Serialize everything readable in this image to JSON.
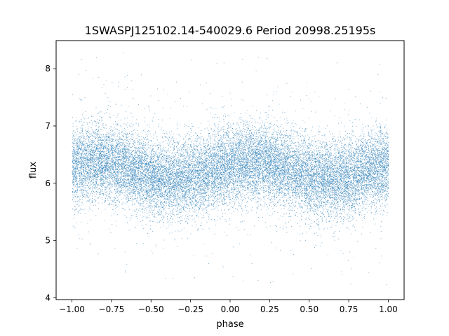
{
  "chart_data": {
    "type": "scatter",
    "title": "1SWASPJ125102.14-540029.6 Period 20998.25195s",
    "xlabel": "phase",
    "ylabel": "flux",
    "xlim": [
      -1.1,
      1.1
    ],
    "ylim": [
      3.97,
      8.49
    ],
    "x_ticks": [
      -1.0,
      -0.75,
      -0.5,
      -0.25,
      0.0,
      0.25,
      0.5,
      0.75,
      1.0
    ],
    "x_tick_labels": [
      "−1.00",
      "−0.75",
      "−0.50",
      "−0.25",
      "0.00",
      "0.25",
      "0.50",
      "0.75",
      "1.00"
    ],
    "y_ticks": [
      4,
      5,
      6,
      7,
      8
    ],
    "y_tick_labels": [
      "4",
      "5",
      "6",
      "7",
      "8"
    ],
    "grid": false,
    "legend": "none",
    "marker_color": "#1f77b4",
    "series": [
      {
        "trend_phase": [
          -1.0,
          -0.9,
          -0.8,
          -0.7,
          -0.6,
          -0.5,
          -0.4,
          -0.3,
          -0.2,
          -0.1,
          0.0,
          0.1,
          0.2,
          0.3,
          0.4,
          0.5,
          0.6,
          0.7,
          0.8,
          0.9,
          1.0
        ],
        "trend_flux": [
          6.3,
          6.35,
          6.38,
          6.32,
          6.22,
          6.12,
          6.06,
          6.08,
          6.15,
          6.25,
          6.3,
          6.35,
          6.38,
          6.32,
          6.22,
          6.12,
          6.06,
          6.08,
          6.15,
          6.25,
          6.3
        ],
        "scatter_std": 0.33,
        "flux_min": 4.2,
        "flux_max": 8.3,
        "n_points": 22000
      }
    ]
  }
}
